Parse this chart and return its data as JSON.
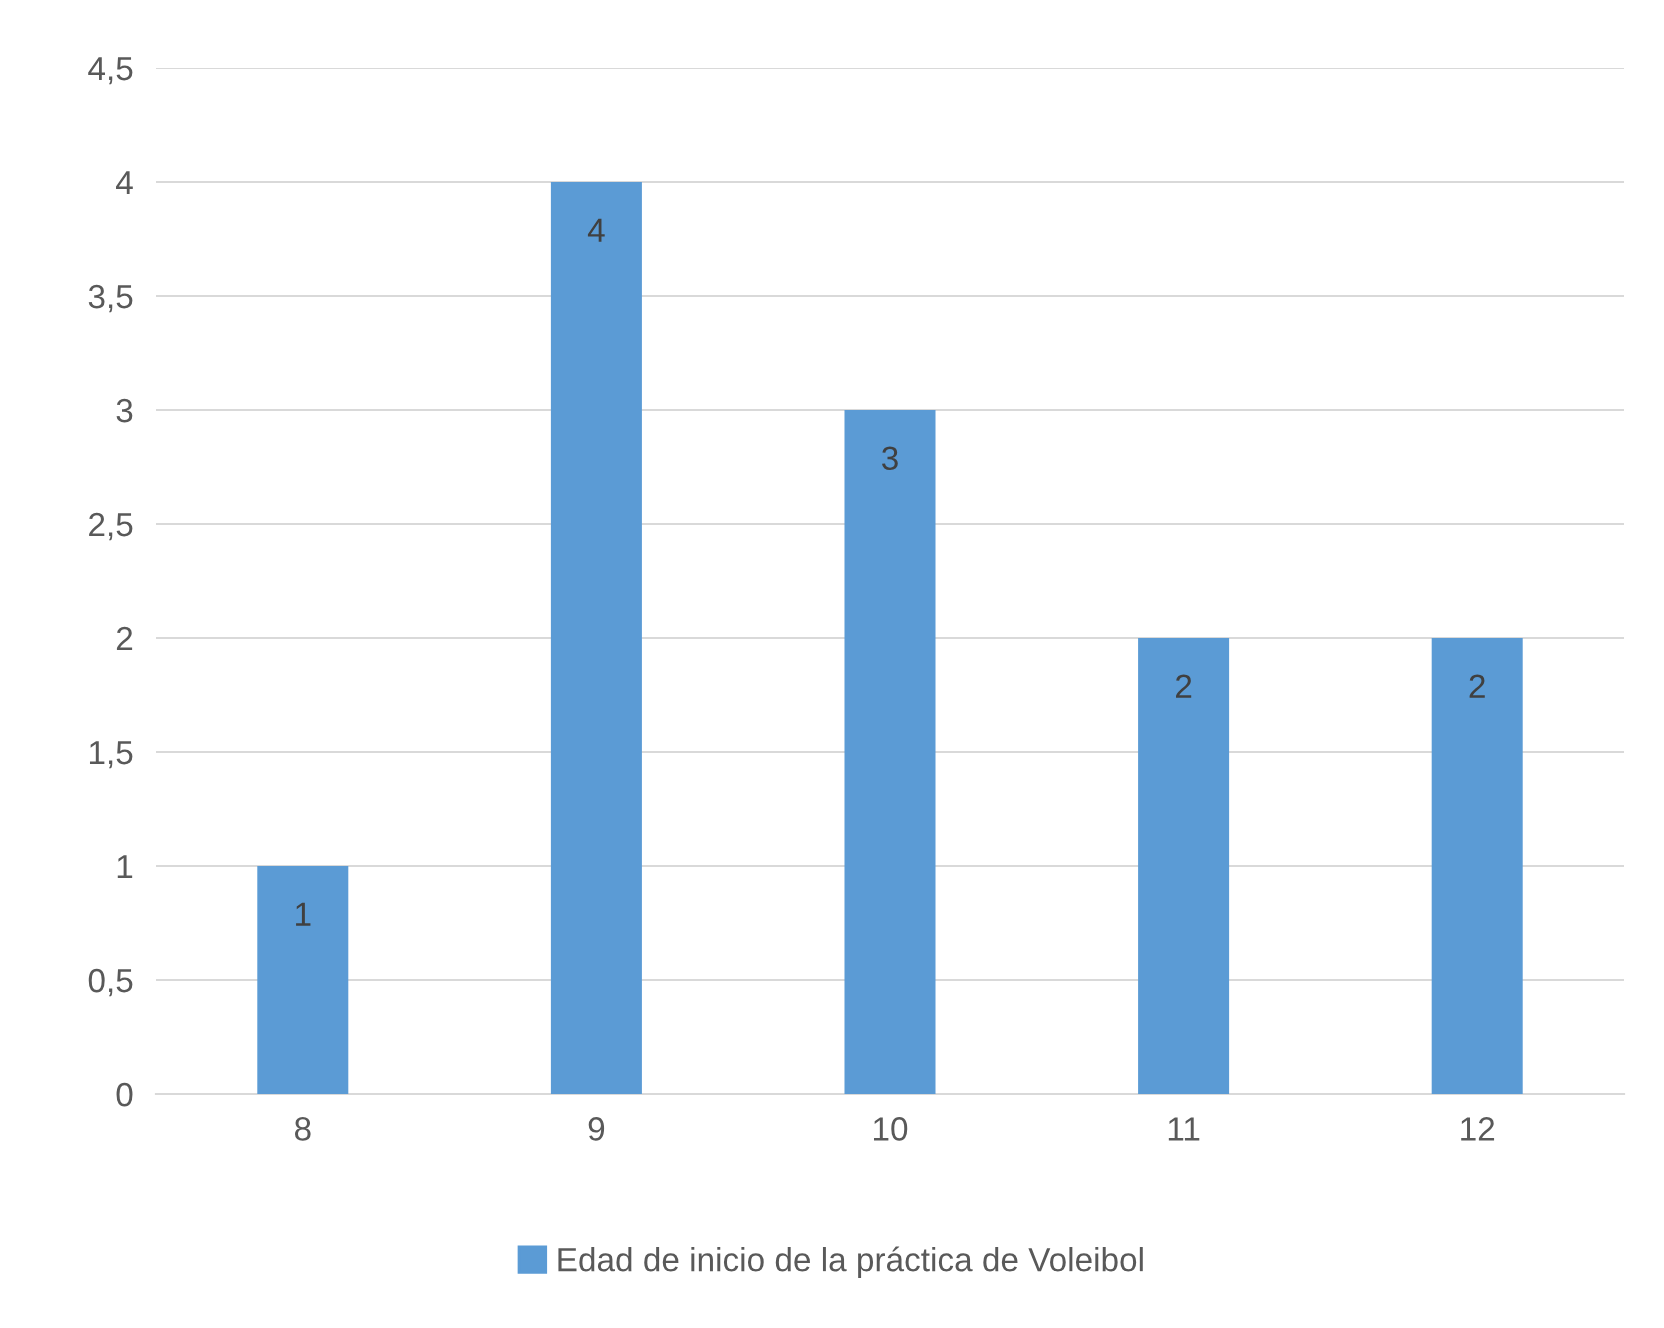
{
  "chart_data": {
    "type": "bar",
    "categories": [
      "8",
      "9",
      "10",
      "11",
      "12"
    ],
    "series": [
      {
        "name": "Edad de inicio de la práctica de Voleibol",
        "color": "#5b9bd5",
        "values": [
          1,
          4,
          3,
          2,
          2
        ]
      }
    ],
    "ylim": [
      0,
      4.5
    ],
    "yticks": [
      0,
      {
        "value": 0.5,
        "label": "0,5"
      },
      1,
      {
        "value": 1.5,
        "label": "1,5"
      },
      2,
      {
        "value": 2.5,
        "label": "2,5"
      },
      3,
      {
        "value": 3.5,
        "label": "3,5"
      },
      4,
      {
        "value": 4.5,
        "label": "4,5"
      }
    ],
    "grid": "y",
    "legend": "bottom",
    "data_labels": true
  }
}
